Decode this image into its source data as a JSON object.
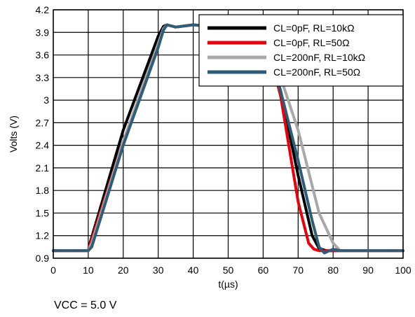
{
  "chart_data": {
    "type": "line",
    "title": "",
    "xlabel": "t(µs)",
    "ylabel": "Volts (V)",
    "xlim": [
      0,
      100
    ],
    "ylim": [
      0.9,
      4.2
    ],
    "x_ticks": [
      "0",
      "10",
      "20",
      "30",
      "40",
      "50",
      "60",
      "70",
      "80",
      "90",
      "100"
    ],
    "y_ticks": [
      "0.9",
      "1.2",
      "1.5",
      "1.8",
      "2.1",
      "2.4",
      "2.7",
      "3",
      "3.3",
      "3.6",
      "3.9",
      "4.2"
    ],
    "grid": true,
    "legend_position": "top-right",
    "series": [
      {
        "name": "CL=0pF, RL=10kΩ",
        "color": "#000000",
        "x": [
          0,
          10,
          10.5,
          20,
          30,
          31.5,
          32.5,
          35,
          40,
          45,
          48,
          55,
          62,
          65,
          70,
          74,
          76,
          78,
          80,
          85,
          90,
          100
        ],
        "y": [
          1.0,
          1.0,
          1.1,
          2.6,
          3.85,
          3.98,
          4.0,
          3.97,
          4.0,
          3.98,
          4.0,
          3.98,
          3.6,
          3.12,
          2.0,
          1.2,
          1.03,
          1.0,
          1.0,
          1.0,
          1.0,
          1.0
        ]
      },
      {
        "name": "CL=0pF, RL=50Ω",
        "color": "#e8000b",
        "x": [
          0,
          10,
          10.5,
          20,
          30,
          31.5,
          32.5,
          35,
          40,
          45,
          48,
          55,
          62,
          65,
          70,
          73,
          74.5,
          76,
          80,
          85,
          90,
          100
        ],
        "y": [
          1.0,
          1.0,
          1.08,
          2.45,
          3.75,
          3.94,
          4.0,
          3.97,
          4.0,
          3.98,
          4.0,
          3.98,
          3.6,
          3.05,
          1.65,
          1.1,
          1.02,
          1.0,
          1.0,
          1.0,
          1.0,
          1.0
        ]
      },
      {
        "name": "CL=200nF, RL=10kΩ",
        "color": "#a8a8a8",
        "x": [
          0,
          10,
          11,
          20,
          30,
          31.5,
          32.5,
          35,
          40,
          45,
          48,
          55,
          62,
          65,
          70,
          76,
          80,
          82,
          85,
          90,
          100
        ],
        "y": [
          1.0,
          1.0,
          1.1,
          2.45,
          3.75,
          3.95,
          4.0,
          3.97,
          4.0,
          3.98,
          4.0,
          3.98,
          3.7,
          3.3,
          2.6,
          1.5,
          1.1,
          1.0,
          1.0,
          1.0,
          1.0
        ]
      },
      {
        "name": "CL=200nF, RL=50Ω",
        "color": "#2f5c78",
        "x": [
          0,
          10,
          11,
          20,
          30,
          31.5,
          32.5,
          35,
          40,
          45,
          48,
          55,
          62,
          65,
          70,
          74,
          76,
          77.5,
          78.5,
          80,
          82,
          85,
          90,
          100
        ],
        "y": [
          1.0,
          1.0,
          1.05,
          2.4,
          3.7,
          3.93,
          4.0,
          3.97,
          4.0,
          3.98,
          4.0,
          3.98,
          3.6,
          3.12,
          2.2,
          1.4,
          1.05,
          0.97,
          0.99,
          1.02,
          1.0,
          1.0,
          1.0,
          1.0
        ]
      }
    ]
  },
  "condition_text": "VCC = 5.0 V"
}
